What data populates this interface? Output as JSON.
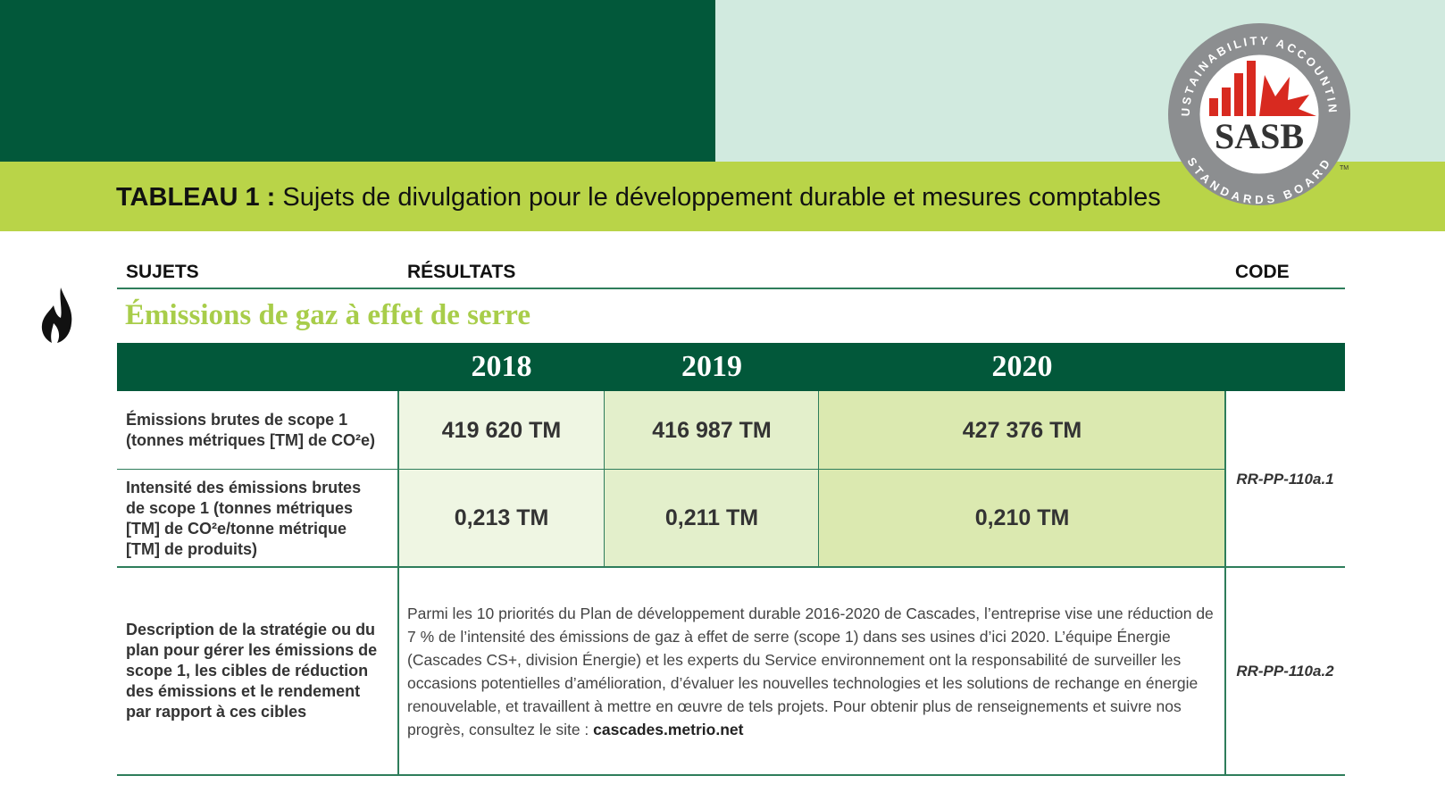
{
  "header": {
    "title_bold": "TABLEAU 1 :",
    "title": "Sujets de divulgation pour le développement durable et mesures comptables"
  },
  "logo": {
    "ring_top": "SUSTAINABILITY ACCOUNTING",
    "name": "SASB",
    "ring_bottom": "STANDARDS BOARD",
    "trademark": "TM"
  },
  "columns": {
    "topics": "SUJETS",
    "results": "RÉSULTATS",
    "code": "CODE"
  },
  "section": {
    "title": "Émissions de gaz à effet de serre"
  },
  "table": {
    "years": [
      "2018",
      "2019",
      "2020"
    ],
    "rows": [
      {
        "label": "Émissions brutes de scope 1 (tonnes métriques [TM] de CO²e)",
        "values": [
          "419 620 TM",
          "416 987 TM",
          "427 376 TM"
        ]
      },
      {
        "label": "Intensité des émissions brutes de scope 1 (tonnes métriques [TM] de CO²e/tonne métrique [TM] de produits)",
        "values": [
          "0,213 TM",
          "0,211 TM",
          "0,210 TM"
        ]
      }
    ],
    "code_emissions": "RR-PP-110a.1",
    "description": {
      "label": "Description de la stratégie ou du plan pour gérer les émissions de scope 1, les cibles de réduction des émissions et le rendement par rapport à ces cibles",
      "text": "Parmi les 10 priorités du Plan de développement durable 2016-2020 de Cascades, l’entreprise vise une réduction de 7 % de l’intensité des émissions de gaz à effet de serre (scope 1) dans ses usines d’ici 2020. L’équipe Énergie (Cascades CS+, division Énergie) et les experts du Service environnement ont la responsabilité de surveiller les occasions potentielles d’amélioration, d’évaluer les nouvelles technologies et les solutions de rechange en énergie renouvelable, et travaillent à mettre en œuvre de tels projets. Pour obtenir plus de renseignements et suivre nos progrès, consultez le site :",
      "link": "cascades.metrio.net",
      "code": "RR-PP-110a.2"
    }
  }
}
